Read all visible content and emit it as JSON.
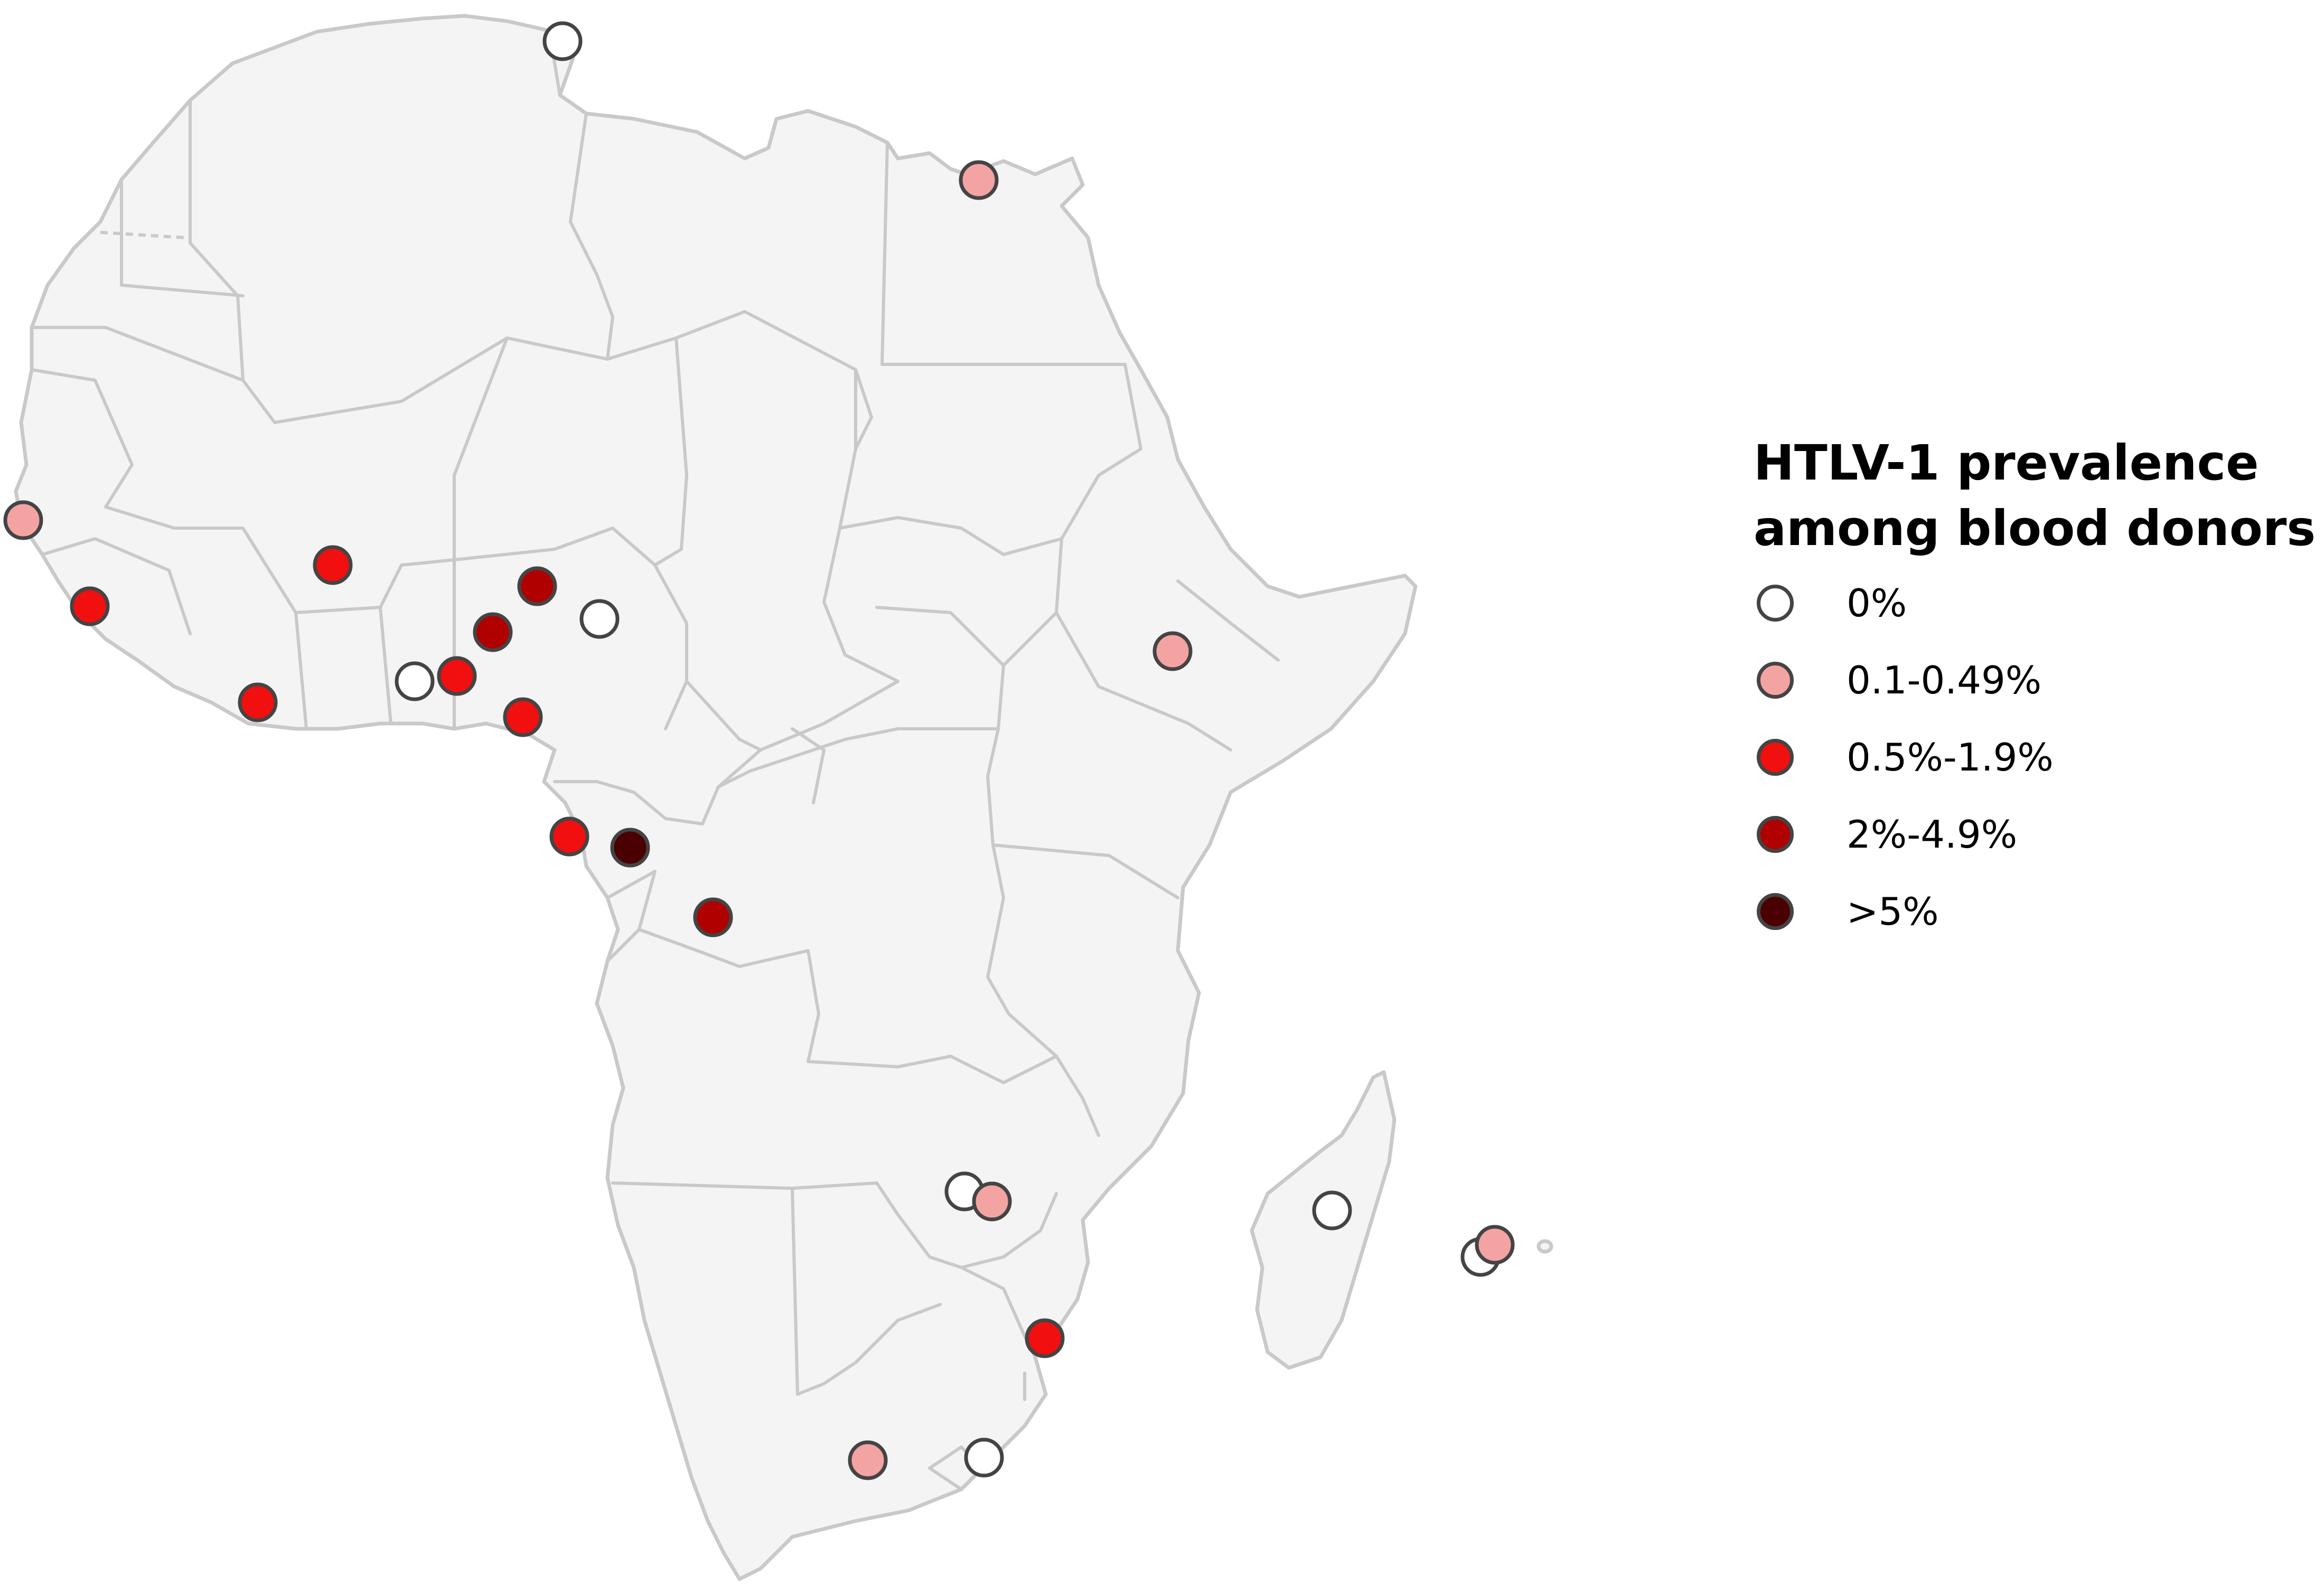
{
  "legend": {
    "title_line1": "HTLV-1 prevalence",
    "title_line2": "among blood donors",
    "items": [
      {
        "label": "0%",
        "color": "#ffffff"
      },
      {
        "label": "0.1-0.49%",
        "color": "#f4a3a3"
      },
      {
        "label": "0.5%-1.9%",
        "color": "#f20f0f"
      },
      {
        "label": "2%-4.9%",
        "color": "#b00000"
      },
      {
        "label": ">5%",
        "color": "#4a0000"
      }
    ]
  },
  "map": {
    "region": "Africa",
    "land_color": "#f4f4f4",
    "border_color": "#c9c9c9",
    "marker_outline": "#444444",
    "sites": [
      {
        "category": "0%"
      },
      {
        "category": "0.1-0.49%"
      },
      {
        "category": "0.1-0.49%"
      },
      {
        "category": "0.5%-1.9%"
      },
      {
        "category": "0.5%-1.9%"
      },
      {
        "category": "0.5%-1.9%"
      },
      {
        "category": "0%"
      },
      {
        "category": "0.5%-1.9%"
      },
      {
        "category": "2%-4.9%"
      },
      {
        "category": "2%-4.9%"
      },
      {
        "category": "0%"
      },
      {
        "category": "0.5%-1.9%"
      },
      {
        "category": "0.1-0.49%"
      },
      {
        "category": "0.5%-1.9%"
      },
      {
        "category": ">5%"
      },
      {
        "category": "2%-4.9%"
      },
      {
        "category": "0%"
      },
      {
        "category": "0.1-0.49%"
      },
      {
        "category": "0%"
      },
      {
        "category": "0%"
      },
      {
        "category": "0.1-0.49%"
      },
      {
        "category": "0.5%-1.9%"
      },
      {
        "category": "0.1-0.49%"
      },
      {
        "category": "0%"
      }
    ]
  }
}
